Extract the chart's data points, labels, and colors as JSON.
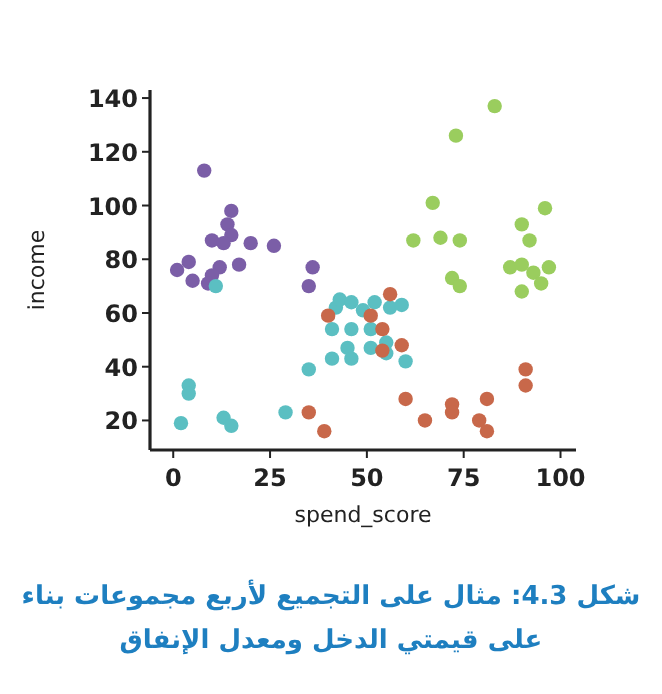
{
  "chart_data": {
    "type": "scatter",
    "xlabel": "spend_score",
    "ylabel": "income",
    "marker": "circle",
    "grid": false,
    "xlim": [
      -6,
      104
    ],
    "ylim": [
      9,
      143
    ],
    "xticks": [
      0,
      25,
      50,
      75,
      100
    ],
    "yticks": [
      20,
      40,
      60,
      80,
      100,
      120,
      140
    ],
    "annotations": [
      "شكل 4.3: مثال على التجميع لأربع مجموعات بناء على قيمتي الدخل ومعدل الإنفاق"
    ],
    "series": [
      {
        "color": "#7b5ea7",
        "x": [
          8,
          15,
          14,
          15,
          10,
          13,
          20,
          26,
          4,
          17,
          12,
          1,
          10,
          5,
          9,
          36,
          35
        ],
        "values": [
          113,
          98,
          93,
          89,
          87,
          86,
          86,
          85,
          79,
          78,
          77,
          76,
          74,
          72,
          71,
          77,
          70
        ]
      },
      {
        "color": "#5bbfc2",
        "x": [
          11,
          4,
          4,
          2,
          13,
          15,
          29,
          35,
          41,
          41,
          42,
          43,
          46,
          46,
          45,
          46,
          52,
          49,
          56,
          59,
          51,
          51,
          55,
          55,
          60
        ],
        "values": [
          70,
          33,
          30,
          19,
          21,
          18,
          23,
          39,
          43,
          54,
          62,
          65,
          64,
          54,
          47,
          43,
          64,
          61,
          62,
          63,
          54,
          47,
          49,
          45,
          42
        ]
      },
      {
        "color": "#c8684a",
        "x": [
          40,
          35,
          39,
          56,
          51,
          54,
          54,
          59,
          60,
          65,
          72,
          72,
          81,
          79,
          81,
          91,
          91
        ],
        "values": [
          59,
          23,
          16,
          67,
          59,
          54,
          46,
          48,
          28,
          20,
          26,
          23,
          28,
          20,
          16,
          39,
          33
        ]
      },
      {
        "color": "#9acd5e",
        "x": [
          83,
          73,
          67,
          96,
          90,
          62,
          69,
          74,
          92,
          87,
          90,
          93,
          97,
          95,
          90,
          72,
          74
        ],
        "values": [
          137,
          126,
          101,
          99,
          93,
          87,
          88,
          87,
          87,
          77,
          78,
          75,
          77,
          71,
          68,
          73,
          70
        ]
      }
    ]
  }
}
